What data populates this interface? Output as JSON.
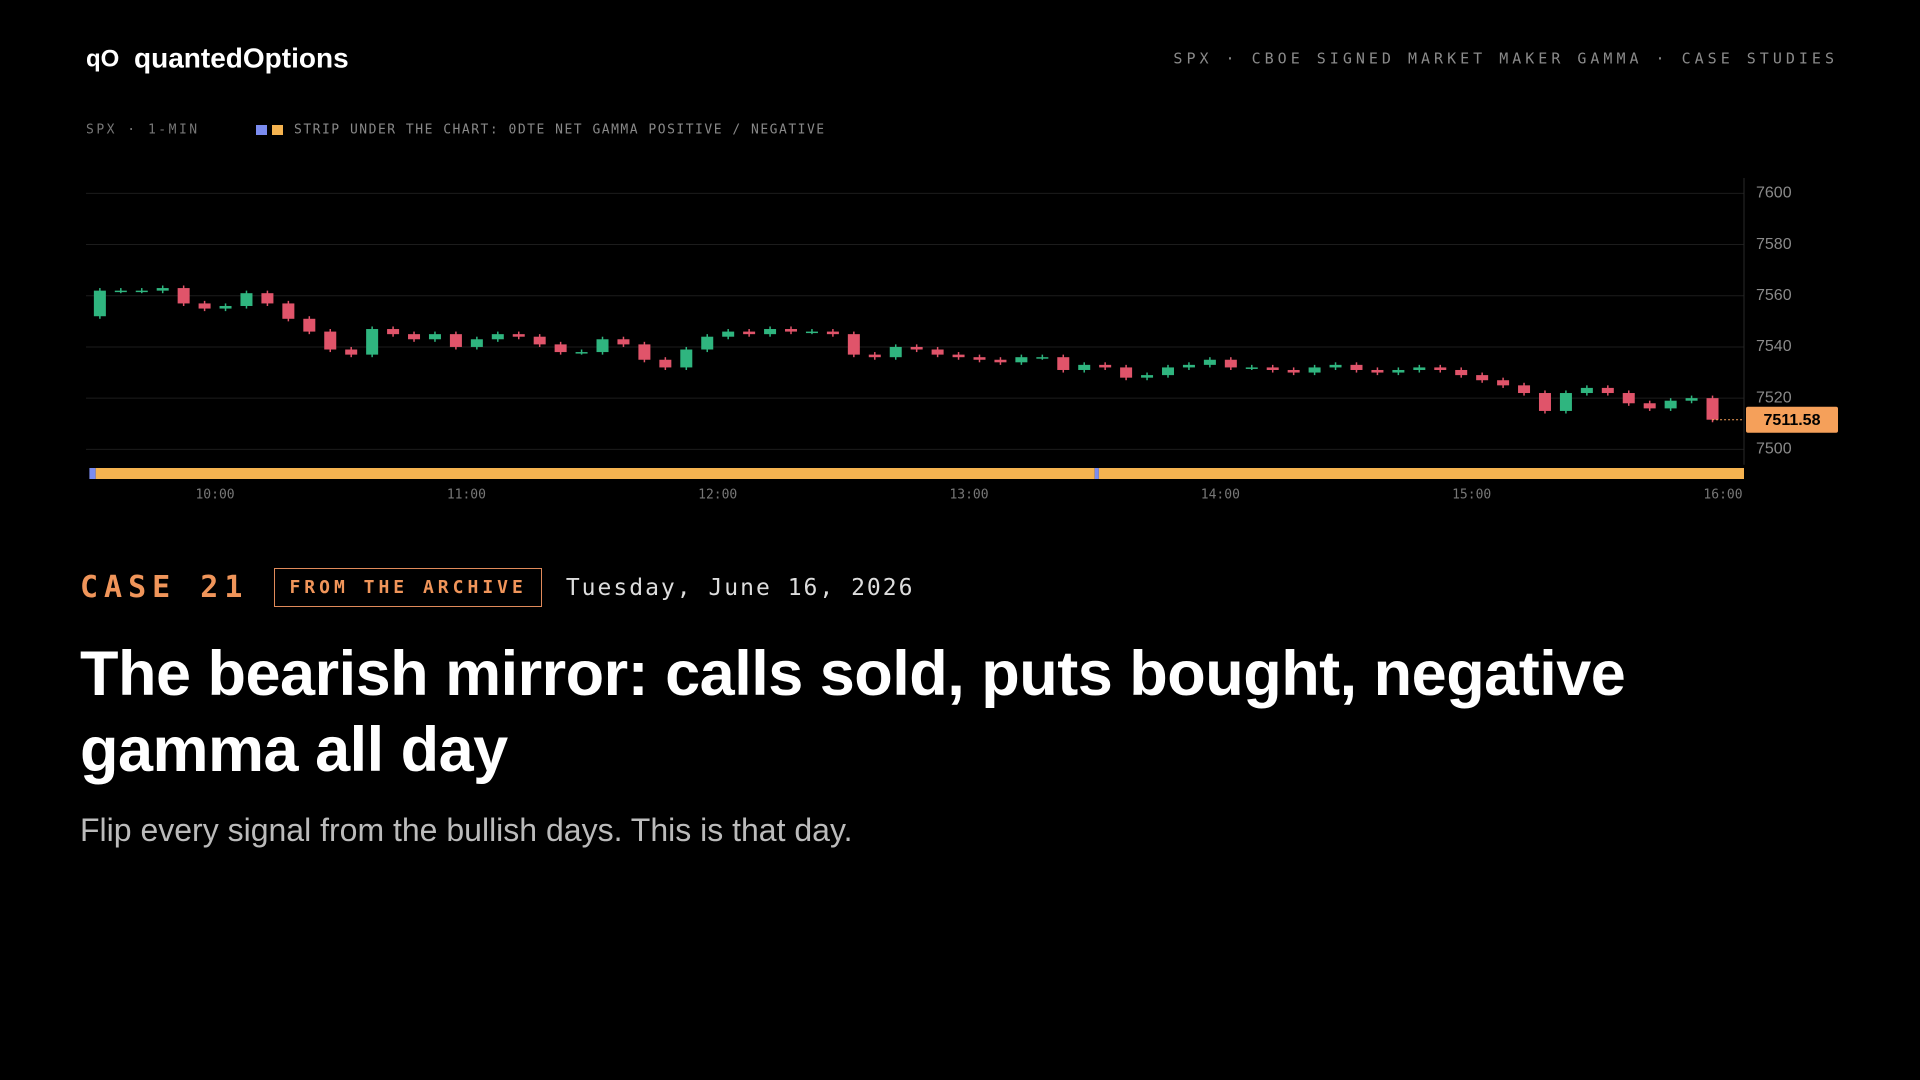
{
  "header": {
    "logo": "qO",
    "brand": "quantedOptions",
    "nav": "SPX · CBOE SIGNED MARKET MAKER GAMMA · CASE STUDIES"
  },
  "chart_data": {
    "type": "candlestick",
    "label": "SPX · 1-MIN",
    "legend": "STRIP UNDER THE CHART: 0DTE NET GAMMA POSITIVE / NEGATIVE",
    "up_color": "#2fb57f",
    "down_color": "#e0546a",
    "strip_colors": {
      "positive": "#7b8cf0",
      "negative": "#f5b350"
    },
    "xlim": [
      0,
      390
    ],
    "xticks": [
      {
        "value": 30,
        "label": "10:00"
      },
      {
        "value": 90,
        "label": "11:00"
      },
      {
        "value": 150,
        "label": "12:00"
      },
      {
        "value": 210,
        "label": "13:00"
      },
      {
        "value": 270,
        "label": "14:00"
      },
      {
        "value": 330,
        "label": "15:00"
      },
      {
        "value": 390,
        "label": "16:00"
      }
    ],
    "ylim": [
      7494,
      7606
    ],
    "yticks": [
      7500,
      7520,
      7540,
      7560,
      7580,
      7600
    ],
    "grid": true,
    "x": [
      0,
      5,
      10,
      15,
      20,
      25,
      30,
      35,
      40,
      45,
      50,
      55,
      60,
      65,
      70,
      75,
      80,
      85,
      90,
      95,
      100,
      105,
      110,
      115,
      120,
      125,
      130,
      135,
      140,
      145,
      150,
      155,
      160,
      165,
      170,
      175,
      180,
      185,
      190,
      195,
      200,
      205,
      210,
      215,
      220,
      225,
      230,
      235,
      240,
      245,
      250,
      255,
      260,
      265,
      270,
      275,
      280,
      285,
      290,
      295,
      300,
      305,
      310,
      315,
      320,
      325,
      330,
      335,
      340,
      345,
      350,
      355,
      360,
      365,
      370,
      375,
      380,
      385
    ],
    "open": [
      7552,
      7562,
      7562,
      7562,
      7563,
      7557,
      7555,
      7556,
      7561,
      7557,
      7551,
      7546,
      7539,
      7537,
      7547,
      7545,
      7543,
      7545,
      7540,
      7543,
      7545,
      7544,
      7541,
      7538,
      7538,
      7543,
      7541,
      7535,
      7532,
      7539,
      7544,
      7546,
      7545,
      7547,
      7546,
      7546,
      7545,
      7537,
      7536,
      7540,
      7539,
      7537,
      7536,
      7535,
      7534,
      7536,
      7536,
      7531,
      7533,
      7532,
      7528,
      7529,
      7532,
      7533,
      7535,
      7532,
      7532,
      7531,
      7530,
      7532,
      7533,
      7531,
      7530,
      7531,
      7532,
      7531,
      7529,
      7527,
      7525,
      7522,
      7515,
      7522,
      7524,
      7522,
      7518,
      7516,
      7519,
      7520
    ],
    "high": [
      7563,
      7563,
      7563,
      7564,
      7564,
      7558,
      7557,
      7562,
      7562,
      7558,
      7552,
      7547,
      7540,
      7548,
      7548,
      7546,
      7546,
      7546,
      7544,
      7546,
      7546,
      7545,
      7542,
      7539,
      7544,
      7544,
      7542,
      7536,
      7540,
      7545,
      7547,
      7547,
      7548,
      7548,
      7547,
      7547,
      7546,
      7538,
      7541,
      7541,
      7540,
      7538,
      7537,
      7536,
      7537,
      7537,
      7537,
      7534,
      7534,
      7533,
      7530,
      7533,
      7534,
      7536,
      7536,
      7533,
      7533,
      7532,
      7533,
      7534,
      7534,
      7532,
      7532,
      7533,
      7533,
      7532,
      7530,
      7528,
      7526,
      7523,
      7523,
      7525,
      7525,
      7523,
      7519,
      7520,
      7521,
      7521
    ],
    "low": [
      7551,
      7561,
      7561,
      7561,
      7556,
      7554,
      7554,
      7555,
      7556,
      7550,
      7545,
      7538,
      7536,
      7536,
      7544,
      7542,
      7542,
      7539,
      7539,
      7542,
      7543,
      7540,
      7537,
      7537,
      7537,
      7540,
      7534,
      7531,
      7531,
      7538,
      7543,
      7544,
      7544,
      7545,
      7545,
      7544,
      7536,
      7535,
      7535,
      7538,
      7536,
      7535,
      7534,
      7533,
      7533,
      7535,
      7530,
      7530,
      7531,
      7527,
      7527,
      7528,
      7531,
      7532,
      7531,
      7531,
      7530,
      7529,
      7529,
      7531,
      7530,
      7529,
      7529,
      7530,
      7530,
      7528,
      7526,
      7524,
      7521,
      7514,
      7514,
      7521,
      7521,
      7517,
      7515,
      7515,
      7518,
      7510.58
    ],
    "close": [
      7562,
      7562,
      7562,
      7563,
      7557,
      7555,
      7556,
      7561,
      7557,
      7551,
      7546,
      7539,
      7537,
      7547,
      7545,
      7543,
      7545,
      7540,
      7543,
      7545,
      7544,
      7541,
      7538,
      7538,
      7543,
      7541,
      7535,
      7532,
      7539,
      7544,
      7546,
      7545,
      7547,
      7546,
      7546,
      7545,
      7537,
      7536,
      7540,
      7539,
      7537,
      7536,
      7535,
      7534,
      7536,
      7536,
      7531,
      7533,
      7532,
      7528,
      7529,
      7532,
      7533,
      7535,
      7532,
      7532,
      7531,
      7530,
      7532,
      7533,
      7531,
      7530,
      7531,
      7532,
      7531,
      7529,
      7527,
      7525,
      7522,
      7515,
      7522,
      7524,
      7522,
      7518,
      7516,
      7519,
      7520,
      7511.58
    ],
    "last_price": 7511.58,
    "last_price_color": "#f5a05a",
    "gamma_strip": [
      {
        "start": 0,
        "end": 1.5,
        "state": "positive"
      },
      {
        "start": 1.5,
        "end": 240,
        "state": "negative"
      },
      {
        "start": 240,
        "end": 241,
        "state": "positive"
      },
      {
        "start": 241,
        "end": 396,
        "state": "negative"
      }
    ]
  },
  "case": {
    "number": "CASE 21",
    "tag": "FROM THE ARCHIVE",
    "date": "Tuesday, June 16, 2026",
    "title": "The bearish mirror: calls sold, puts bought, negative gamma all day",
    "subtitle": "Flip every signal from the bullish days. This is that day."
  }
}
